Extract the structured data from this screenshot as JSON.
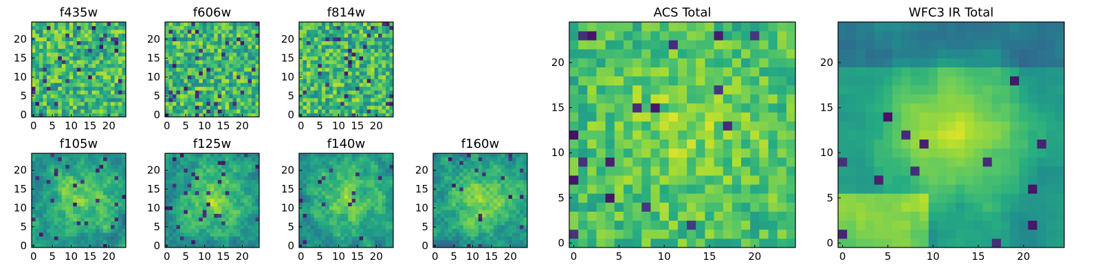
{
  "chart_data": {
    "type": "heatmap",
    "colormap": "viridis",
    "grid": false,
    "panels": [
      {
        "title": "f435w",
        "size": 25,
        "xticks": [
          0,
          5,
          10,
          15,
          20
        ],
        "yticks": [
          0,
          5,
          10,
          15,
          20
        ],
        "texture": "noise"
      },
      {
        "title": "f606w",
        "size": 25,
        "xticks": [
          0,
          5,
          10,
          15,
          20
        ],
        "yticks": [
          0,
          5,
          10,
          15,
          20
        ],
        "texture": "noise"
      },
      {
        "title": "f814w",
        "size": 25,
        "xticks": [
          0,
          5,
          10,
          15,
          20
        ],
        "yticks": [
          0,
          5,
          10,
          15,
          20
        ],
        "texture": "noise"
      },
      {
        "title": "f105w",
        "size": 25,
        "xticks": [
          0,
          5,
          10,
          15,
          20
        ],
        "yticks": [
          0,
          5,
          10,
          15,
          20
        ],
        "texture": "smooth"
      },
      {
        "title": "f125w",
        "size": 25,
        "xticks": [
          0,
          5,
          10,
          15,
          20
        ],
        "yticks": [
          0,
          5,
          10,
          15,
          20
        ],
        "texture": "smooth"
      },
      {
        "title": "f140w",
        "size": 25,
        "xticks": [
          0,
          5,
          10,
          15,
          20
        ],
        "yticks": [
          0,
          5,
          10,
          15,
          20
        ],
        "texture": "smooth"
      },
      {
        "title": "f160w",
        "size": 25,
        "xticks": [
          0,
          5,
          10,
          15,
          20
        ],
        "yticks": [
          0,
          5,
          10,
          15,
          20
        ],
        "texture": "smooth"
      },
      {
        "title": "ACS Total",
        "size": 25,
        "xticks": [
          0,
          5,
          10,
          15,
          20
        ],
        "yticks": [
          0,
          5,
          10,
          15,
          20
        ],
        "texture": "acs"
      },
      {
        "title": "WFC3 IR Total",
        "size": 25,
        "xticks": [
          0,
          5,
          10,
          15,
          20
        ],
        "yticks": [
          0,
          5,
          10,
          15,
          20
        ],
        "texture": "wfc3"
      }
    ]
  }
}
